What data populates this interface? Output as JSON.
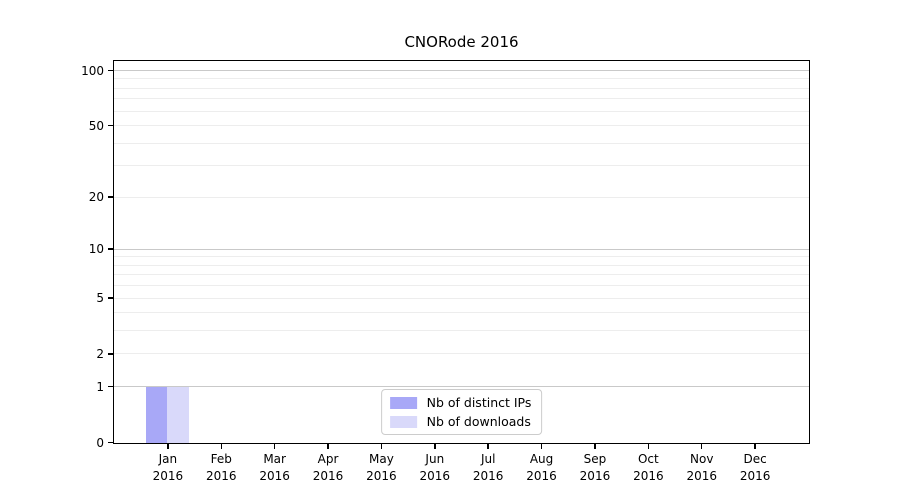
{
  "chart_data": {
    "type": "bar",
    "title": "CNORode 2016",
    "x_year": "2016",
    "months": [
      "Jan",
      "Feb",
      "Mar",
      "Apr",
      "May",
      "Jun",
      "Jul",
      "Aug",
      "Sep",
      "Oct",
      "Nov",
      "Dec"
    ],
    "series": [
      {
        "name": "Nb of distinct IPs",
        "color": "#a8a8f7",
        "values": [
          1,
          0,
          0,
          0,
          0,
          0,
          0,
          0,
          0,
          0,
          0,
          0
        ]
      },
      {
        "name": "Nb of downloads",
        "color": "#d9d9fa",
        "values": [
          1,
          0,
          0,
          0,
          0,
          0,
          0,
          0,
          0,
          0,
          0,
          0
        ]
      }
    ],
    "y_ticks": [
      0,
      1,
      2,
      5,
      10,
      20,
      50,
      100
    ],
    "y_major_gridlines": [
      1,
      10,
      100
    ],
    "y_minor_gridlines": [
      2,
      3,
      4,
      5,
      6,
      7,
      8,
      9,
      20,
      30,
      40,
      50,
      60,
      70,
      80,
      90
    ],
    "ylim": [
      0,
      112
    ],
    "scale": "log1p",
    "grid": "horizontal",
    "legend_position": "lower center",
    "colors": {
      "major_grid": "#c9c9c9",
      "minor_grid": "#ededed",
      "axis": "#000000",
      "background": "#ffffff"
    }
  }
}
